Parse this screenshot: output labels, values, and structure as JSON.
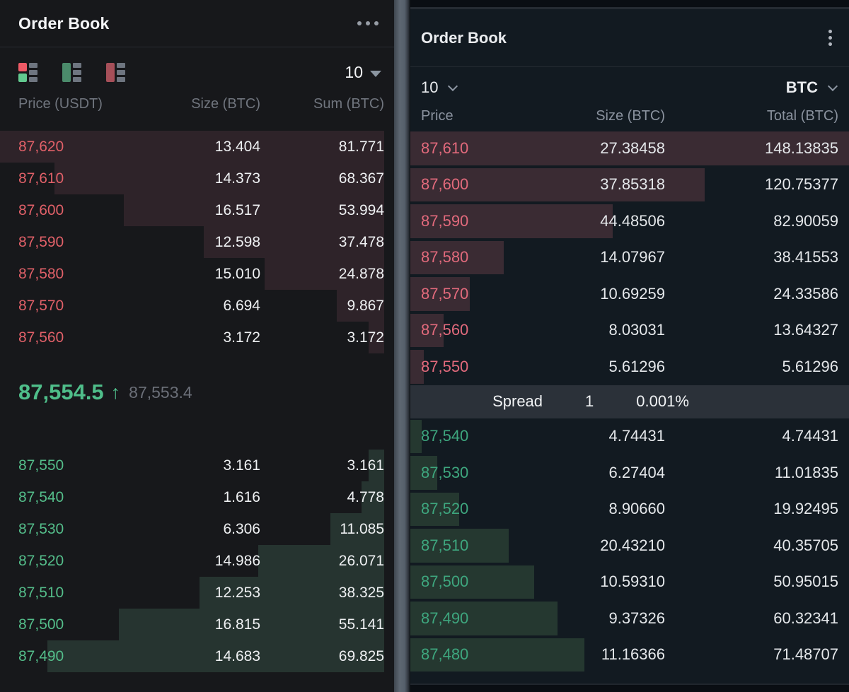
{
  "left_panel": {
    "title": "Order Book",
    "menu": "more-options",
    "view_toggles": [
      "combined-book-view",
      "bids-only-view",
      "asks-only-view"
    ],
    "precision_dropdown": {
      "value": "10"
    },
    "columns": {
      "price": "Price (USDT)",
      "size": "Size (BTC)",
      "sum": "Sum (BTC)"
    },
    "asks": [
      {
        "price": "87,620",
        "size": "13.404",
        "sum": "81.771",
        "depth_pct": 100
      },
      {
        "price": "87,610",
        "size": "14.373",
        "sum": "68.367",
        "depth_pct": 83.6
      },
      {
        "price": "87,600",
        "size": "16.517",
        "sum": "53.994",
        "depth_pct": 66.0
      },
      {
        "price": "87,590",
        "size": "12.598",
        "sum": "37.478",
        "depth_pct": 45.8
      },
      {
        "price": "87,580",
        "size": "15.010",
        "sum": "24.878",
        "depth_pct": 30.4
      },
      {
        "price": "87,570",
        "size": "6.694",
        "sum": "9.867",
        "depth_pct": 12.1
      },
      {
        "price": "87,560",
        "size": "3.172",
        "sum": "3.172",
        "depth_pct": 3.9
      }
    ],
    "last_price": {
      "value": "87,554.5",
      "direction_arrow": "↑",
      "mark_price": "87,553.4"
    },
    "bids": [
      {
        "price": "87,550",
        "size": "3.161",
        "sum": "3.161",
        "depth_pct": 3.9
      },
      {
        "price": "87,540",
        "size": "1.616",
        "sum": "4.778",
        "depth_pct": 5.8
      },
      {
        "price": "87,530",
        "size": "6.306",
        "sum": "11.085",
        "depth_pct": 13.6
      },
      {
        "price": "87,520",
        "size": "14.986",
        "sum": "26.071",
        "depth_pct": 31.9
      },
      {
        "price": "87,510",
        "size": "12.253",
        "sum": "38.325",
        "depth_pct": 46.9
      },
      {
        "price": "87,500",
        "size": "16.815",
        "sum": "55.141",
        "depth_pct": 67.4
      },
      {
        "price": "87,490",
        "size": "14.683",
        "sum": "69.825",
        "depth_pct": 85.4
      }
    ]
  },
  "right_panel": {
    "title": "Order Book",
    "menu": "more-options",
    "depth_dropdown": {
      "value": "10"
    },
    "asset_dropdown": {
      "value": "BTC"
    },
    "columns": {
      "price": "Price",
      "size": "Size (BTC)",
      "sum": "Total (BTC)"
    },
    "asks": [
      {
        "price": "87,610",
        "size": "27.38458",
        "sum": "148.13835",
        "depth_pct": 100
      },
      {
        "price": "87,600",
        "size": "37.85318",
        "sum": "120.75377",
        "depth_pct": 67.1
      },
      {
        "price": "87,590",
        "size": "44.48506",
        "sum": "82.90059",
        "depth_pct": 46.1
      },
      {
        "price": "87,580",
        "size": "14.07967",
        "sum": "38.41553",
        "depth_pct": 21.3
      },
      {
        "price": "87,570",
        "size": "10.69259",
        "sum": "24.33586",
        "depth_pct": 13.5
      },
      {
        "price": "87,560",
        "size": "8.03031",
        "sum": "13.64327",
        "depth_pct": 7.6
      },
      {
        "price": "87,550",
        "size": "5.61296",
        "sum": "5.61296",
        "depth_pct": 3.1
      }
    ],
    "spread": {
      "label": "Spread",
      "value": "1",
      "percent": "0.001%"
    },
    "bids": [
      {
        "price": "87,540",
        "size": "4.74431",
        "sum": "4.74431",
        "depth_pct": 2.6
      },
      {
        "price": "87,530",
        "size": "6.27404",
        "sum": "11.01835",
        "depth_pct": 6.1
      },
      {
        "price": "87,520",
        "size": "8.90660",
        "sum": "19.92495",
        "depth_pct": 11.1
      },
      {
        "price": "87,510",
        "size": "20.43210",
        "sum": "40.35705",
        "depth_pct": 22.4
      },
      {
        "price": "87,500",
        "size": "10.59310",
        "sum": "50.95015",
        "depth_pct": 28.3
      },
      {
        "price": "87,490",
        "size": "9.37326",
        "sum": "60.32341",
        "depth_pct": 33.5
      },
      {
        "price": "87,480",
        "size": "11.16366",
        "sum": "71.48707",
        "depth_pct": 39.7
      }
    ]
  },
  "colors": {
    "left_bg": "#17181b",
    "left_ask_price": "#e06068",
    "left_bid_price": "#54bd8a",
    "left_ask_bar": "#2e2329",
    "left_bid_bar": "#263430",
    "left_last_price_green": "#4fbe8a",
    "right_bg": "#121a21",
    "right_ask_price": "#e26a7c",
    "right_bid_price": "#3ea67e",
    "right_ask_bar": "#3a2b33",
    "right_bid_bar": "#253830",
    "spread_bg": "#2b3139",
    "divider_strip": "#5d6671"
  }
}
